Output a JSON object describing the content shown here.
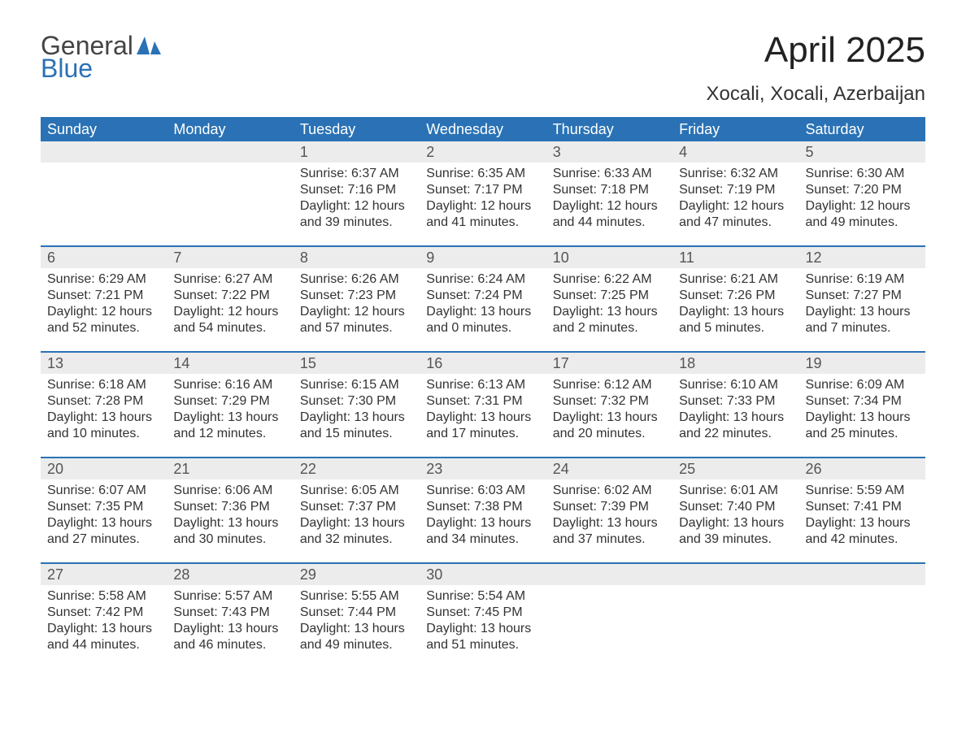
{
  "logo": {
    "word1": "General",
    "word2": "Blue"
  },
  "title": "April 2025",
  "location": "Xocali, Xocali, Azerbaijan",
  "colors": {
    "header_blue": "#2a72b5",
    "row_stripe": "#ececec",
    "background": "#ffffff",
    "text": "#333333",
    "logo_blue": "#2a72b5"
  },
  "fonts": {
    "base_family": "Arial",
    "title_size_pt": 33,
    "location_size_pt": 18,
    "weekday_size_pt": 14,
    "daynum_size_pt": 14,
    "body_size_pt": 12
  },
  "weekdays": [
    "Sunday",
    "Monday",
    "Tuesday",
    "Wednesday",
    "Thursday",
    "Friday",
    "Saturday"
  ],
  "weeks": [
    [
      {
        "day": null
      },
      {
        "day": null
      },
      {
        "day": "1",
        "sunrise": "Sunrise: 6:37 AM",
        "sunset": "Sunset: 7:16 PM",
        "daylight1": "Daylight: 12 hours",
        "daylight2": "and 39 minutes."
      },
      {
        "day": "2",
        "sunrise": "Sunrise: 6:35 AM",
        "sunset": "Sunset: 7:17 PM",
        "daylight1": "Daylight: 12 hours",
        "daylight2": "and 41 minutes."
      },
      {
        "day": "3",
        "sunrise": "Sunrise: 6:33 AM",
        "sunset": "Sunset: 7:18 PM",
        "daylight1": "Daylight: 12 hours",
        "daylight2": "and 44 minutes."
      },
      {
        "day": "4",
        "sunrise": "Sunrise: 6:32 AM",
        "sunset": "Sunset: 7:19 PM",
        "daylight1": "Daylight: 12 hours",
        "daylight2": "and 47 minutes."
      },
      {
        "day": "5",
        "sunrise": "Sunrise: 6:30 AM",
        "sunset": "Sunset: 7:20 PM",
        "daylight1": "Daylight: 12 hours",
        "daylight2": "and 49 minutes."
      }
    ],
    [
      {
        "day": "6",
        "sunrise": "Sunrise: 6:29 AM",
        "sunset": "Sunset: 7:21 PM",
        "daylight1": "Daylight: 12 hours",
        "daylight2": "and 52 minutes."
      },
      {
        "day": "7",
        "sunrise": "Sunrise: 6:27 AM",
        "sunset": "Sunset: 7:22 PM",
        "daylight1": "Daylight: 12 hours",
        "daylight2": "and 54 minutes."
      },
      {
        "day": "8",
        "sunrise": "Sunrise: 6:26 AM",
        "sunset": "Sunset: 7:23 PM",
        "daylight1": "Daylight: 12 hours",
        "daylight2": "and 57 minutes."
      },
      {
        "day": "9",
        "sunrise": "Sunrise: 6:24 AM",
        "sunset": "Sunset: 7:24 PM",
        "daylight1": "Daylight: 13 hours",
        "daylight2": "and 0 minutes."
      },
      {
        "day": "10",
        "sunrise": "Sunrise: 6:22 AM",
        "sunset": "Sunset: 7:25 PM",
        "daylight1": "Daylight: 13 hours",
        "daylight2": "and 2 minutes."
      },
      {
        "day": "11",
        "sunrise": "Sunrise: 6:21 AM",
        "sunset": "Sunset: 7:26 PM",
        "daylight1": "Daylight: 13 hours",
        "daylight2": "and 5 minutes."
      },
      {
        "day": "12",
        "sunrise": "Sunrise: 6:19 AM",
        "sunset": "Sunset: 7:27 PM",
        "daylight1": "Daylight: 13 hours",
        "daylight2": "and 7 minutes."
      }
    ],
    [
      {
        "day": "13",
        "sunrise": "Sunrise: 6:18 AM",
        "sunset": "Sunset: 7:28 PM",
        "daylight1": "Daylight: 13 hours",
        "daylight2": "and 10 minutes."
      },
      {
        "day": "14",
        "sunrise": "Sunrise: 6:16 AM",
        "sunset": "Sunset: 7:29 PM",
        "daylight1": "Daylight: 13 hours",
        "daylight2": "and 12 minutes."
      },
      {
        "day": "15",
        "sunrise": "Sunrise: 6:15 AM",
        "sunset": "Sunset: 7:30 PM",
        "daylight1": "Daylight: 13 hours",
        "daylight2": "and 15 minutes."
      },
      {
        "day": "16",
        "sunrise": "Sunrise: 6:13 AM",
        "sunset": "Sunset: 7:31 PM",
        "daylight1": "Daylight: 13 hours",
        "daylight2": "and 17 minutes."
      },
      {
        "day": "17",
        "sunrise": "Sunrise: 6:12 AM",
        "sunset": "Sunset: 7:32 PM",
        "daylight1": "Daylight: 13 hours",
        "daylight2": "and 20 minutes."
      },
      {
        "day": "18",
        "sunrise": "Sunrise: 6:10 AM",
        "sunset": "Sunset: 7:33 PM",
        "daylight1": "Daylight: 13 hours",
        "daylight2": "and 22 minutes."
      },
      {
        "day": "19",
        "sunrise": "Sunrise: 6:09 AM",
        "sunset": "Sunset: 7:34 PM",
        "daylight1": "Daylight: 13 hours",
        "daylight2": "and 25 minutes."
      }
    ],
    [
      {
        "day": "20",
        "sunrise": "Sunrise: 6:07 AM",
        "sunset": "Sunset: 7:35 PM",
        "daylight1": "Daylight: 13 hours",
        "daylight2": "and 27 minutes."
      },
      {
        "day": "21",
        "sunrise": "Sunrise: 6:06 AM",
        "sunset": "Sunset: 7:36 PM",
        "daylight1": "Daylight: 13 hours",
        "daylight2": "and 30 minutes."
      },
      {
        "day": "22",
        "sunrise": "Sunrise: 6:05 AM",
        "sunset": "Sunset: 7:37 PM",
        "daylight1": "Daylight: 13 hours",
        "daylight2": "and 32 minutes."
      },
      {
        "day": "23",
        "sunrise": "Sunrise: 6:03 AM",
        "sunset": "Sunset: 7:38 PM",
        "daylight1": "Daylight: 13 hours",
        "daylight2": "and 34 minutes."
      },
      {
        "day": "24",
        "sunrise": "Sunrise: 6:02 AM",
        "sunset": "Sunset: 7:39 PM",
        "daylight1": "Daylight: 13 hours",
        "daylight2": "and 37 minutes."
      },
      {
        "day": "25",
        "sunrise": "Sunrise: 6:01 AM",
        "sunset": "Sunset: 7:40 PM",
        "daylight1": "Daylight: 13 hours",
        "daylight2": "and 39 minutes."
      },
      {
        "day": "26",
        "sunrise": "Sunrise: 5:59 AM",
        "sunset": "Sunset: 7:41 PM",
        "daylight1": "Daylight: 13 hours",
        "daylight2": "and 42 minutes."
      }
    ],
    [
      {
        "day": "27",
        "sunrise": "Sunrise: 5:58 AM",
        "sunset": "Sunset: 7:42 PM",
        "daylight1": "Daylight: 13 hours",
        "daylight2": "and 44 minutes."
      },
      {
        "day": "28",
        "sunrise": "Sunrise: 5:57 AM",
        "sunset": "Sunset: 7:43 PM",
        "daylight1": "Daylight: 13 hours",
        "daylight2": "and 46 minutes."
      },
      {
        "day": "29",
        "sunrise": "Sunrise: 5:55 AM",
        "sunset": "Sunset: 7:44 PM",
        "daylight1": "Daylight: 13 hours",
        "daylight2": "and 49 minutes."
      },
      {
        "day": "30",
        "sunrise": "Sunrise: 5:54 AM",
        "sunset": "Sunset: 7:45 PM",
        "daylight1": "Daylight: 13 hours",
        "daylight2": "and 51 minutes."
      },
      {
        "day": null
      },
      {
        "day": null
      },
      {
        "day": null
      }
    ]
  ]
}
